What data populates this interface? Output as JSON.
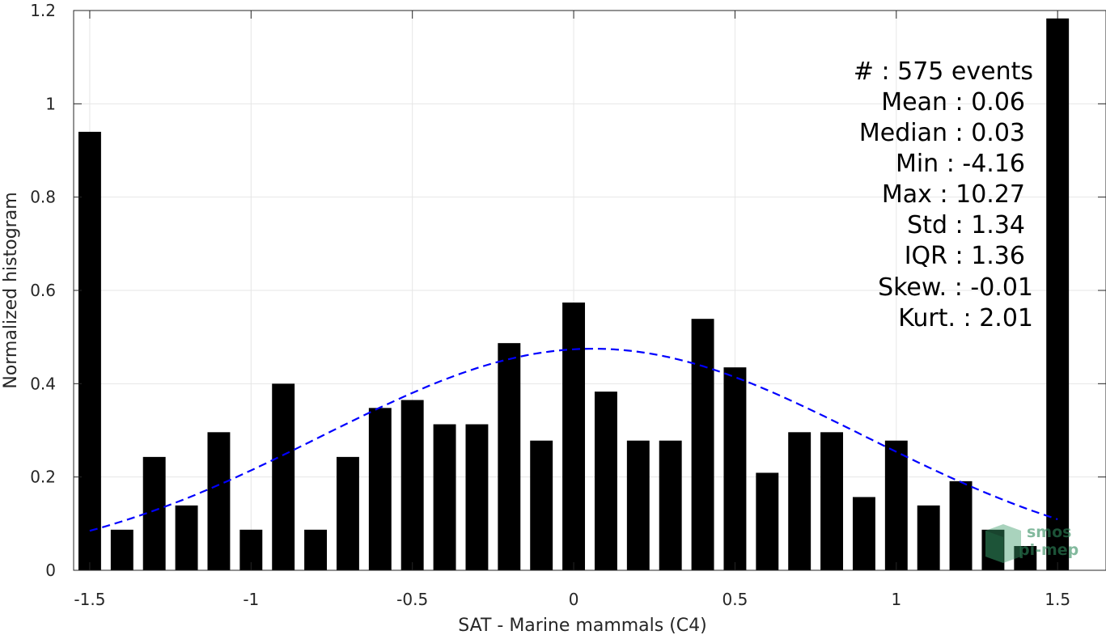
{
  "chart_data": {
    "type": "bar",
    "xlabel": "SAT - Marine mammals (C4)",
    "ylabel": "Normalized histogram",
    "xlim": [
      -1.55,
      1.65
    ],
    "ylim": [
      0,
      1.2
    ],
    "xticks": [
      -1.5,
      -1,
      -0.5,
      0,
      0.5,
      1,
      1.5
    ],
    "xtick_labels": [
      "-1.5",
      "-1",
      "-0.5",
      "0",
      "0.5",
      "1",
      "1.5"
    ],
    "yticks": [
      0,
      0.2,
      0.4,
      0.6,
      0.8,
      1,
      1.2
    ],
    "ytick_labels": [
      "0",
      "0.2",
      "0.4",
      "0.6",
      "0.8",
      "1",
      "1.2"
    ],
    "grid": true,
    "bar_color": "#000000",
    "bar_width": 0.07,
    "x": [
      -1.5,
      -1.4,
      -1.3,
      -1.2,
      -1.1,
      -1.0,
      -0.9,
      -0.8,
      -0.7,
      -0.6,
      -0.5,
      -0.4,
      -0.3,
      -0.2,
      -0.1,
      0.0,
      0.1,
      0.2,
      0.3,
      0.4,
      0.5,
      0.6,
      0.7,
      0.8,
      0.9,
      1.0,
      1.1,
      1.2,
      1.3,
      1.4,
      1.5
    ],
    "values": [
      0.94,
      0.087,
      0.243,
      0.139,
      0.296,
      0.087,
      0.4,
      0.087,
      0.243,
      0.348,
      0.365,
      0.313,
      0.313,
      0.487,
      0.278,
      0.574,
      0.383,
      0.278,
      0.278,
      0.539,
      0.435,
      0.209,
      0.296,
      0.296,
      0.157,
      0.278,
      0.139,
      0.191,
      0.087,
      0.052,
      1.183
    ],
    "fit_curve": {
      "style": "dashed",
      "color": "#0000ff",
      "mean": 0.06,
      "std": 0.84,
      "peak": 0.475,
      "x_range": [
        -1.5,
        1.5
      ]
    },
    "stats": {
      "events": "#  : 575 events",
      "mean": "Mean : 0.06",
      "median": "Median : 0.03",
      "min": "Min : -4.16",
      "max": "Max : 10.27",
      "std": "Std : 1.34",
      "iqr": "IQR : 1.36",
      "skew": "Skew. : -0.01",
      "kurt": "Kurt. : 2.01"
    }
  },
  "logo": {
    "line1": "smos",
    "line2": "pi-mep"
  }
}
